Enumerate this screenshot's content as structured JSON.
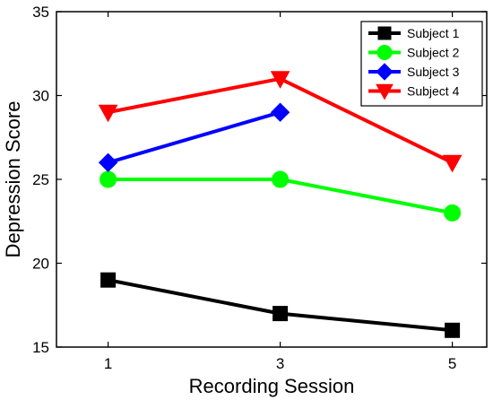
{
  "chart_data": {
    "type": "line",
    "xlabel": "Recording Session",
    "ylabel": "Depression Score",
    "x_ticks": [
      1,
      3,
      5
    ],
    "y_ticks": [
      15,
      20,
      25,
      30,
      35
    ],
    "xlim": [
      0.4,
      5.4
    ],
    "ylim": [
      15,
      35
    ],
    "grid": false,
    "legend_position": "top-right",
    "series": [
      {
        "name": "Subject 1",
        "color": "#000000",
        "marker": "square",
        "x": [
          1,
          3,
          5
        ],
        "y": [
          19,
          17,
          16
        ]
      },
      {
        "name": "Subject 2",
        "color": "#00ff00",
        "marker": "circle",
        "x": [
          1,
          3,
          5
        ],
        "y": [
          25,
          25,
          23
        ]
      },
      {
        "name": "Subject 3",
        "color": "#0000ff",
        "marker": "diamond",
        "x": [
          1,
          3
        ],
        "y": [
          26,
          29
        ]
      },
      {
        "name": "Subject 4",
        "color": "#ff0000",
        "marker": "triangle-down",
        "x": [
          1,
          3,
          5
        ],
        "y": [
          29,
          31,
          26
        ]
      }
    ]
  }
}
